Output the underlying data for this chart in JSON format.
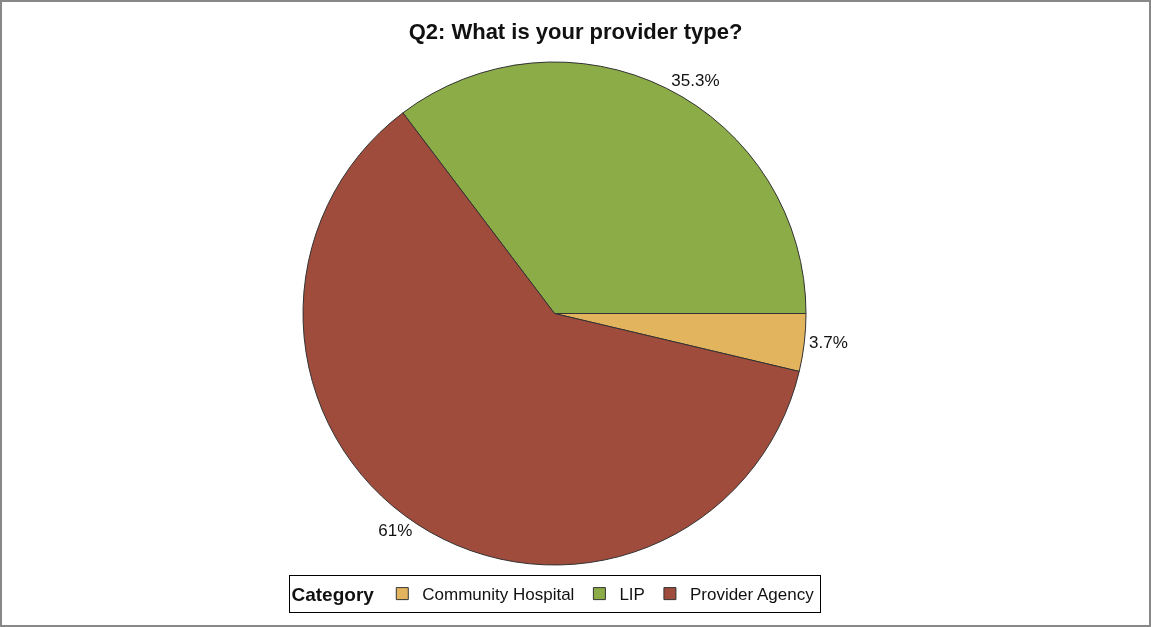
{
  "chart_data": {
    "type": "pie",
    "title": "Q2: What is your provider type?",
    "categories": [
      "Community Hospital",
      "LIP",
      "Provider Agency"
    ],
    "values": [
      3.7,
      35.3,
      61
    ],
    "colors": [
      "#e3b45e",
      "#8cac48",
      "#a04c3c"
    ],
    "value_labels": [
      "3.7%",
      "35.3%",
      "61%"
    ],
    "legend_title": "Category",
    "legend": "bottom"
  }
}
